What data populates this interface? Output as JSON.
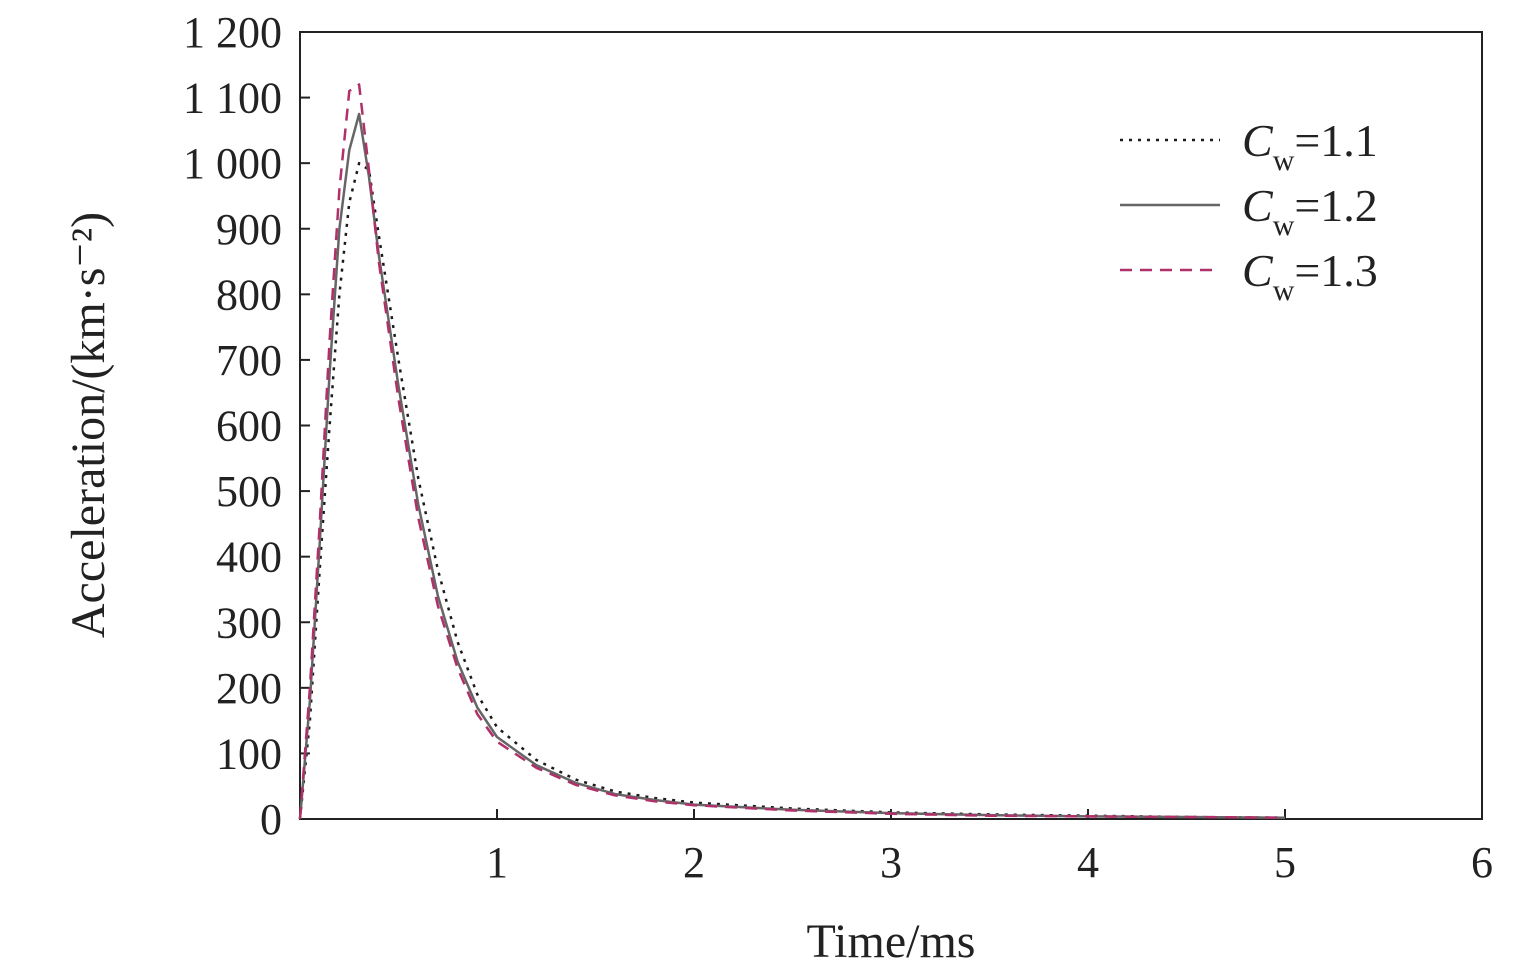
{
  "chart_data": {
    "type": "line",
    "title": "",
    "xlabel": "Time/ms",
    "ylabel": "Acceleration/(km·s⁻²)",
    "xlim": [
      0,
      6
    ],
    "ylim": [
      0,
      1200
    ],
    "x_ticks": [
      "1",
      "2",
      "3",
      "4",
      "5",
      "6"
    ],
    "y_ticks": [
      "0",
      "100",
      "200",
      "300",
      "400",
      "500",
      "600",
      "700",
      "800",
      "900",
      "1 000",
      "1 100",
      "1 200"
    ],
    "grid": false,
    "legend_position": "top-right",
    "series": [
      {
        "name": "Cw=1.1",
        "legend_main": "C",
        "legend_sub": "w",
        "legend_value": "=1.1",
        "style": "dotted",
        "color": "#1a1a1a",
        "x": [
          0,
          0.05,
          0.1,
          0.15,
          0.2,
          0.25,
          0.3,
          0.35,
          0.4,
          0.5,
          0.6,
          0.7,
          0.8,
          0.9,
          1.0,
          1.2,
          1.4,
          1.6,
          1.8,
          2.0,
          2.5,
          3.0,
          3.5,
          4.0,
          4.5,
          5.0
        ],
        "y": [
          0,
          150,
          380,
          600,
          800,
          940,
          1000,
          990,
          890,
          700,
          520,
          380,
          270,
          190,
          140,
          90,
          60,
          42,
          32,
          25,
          16,
          10,
          7,
          5,
          3,
          2
        ]
      },
      {
        "name": "Cw=1.2",
        "legend_main": "C",
        "legend_sub": "w",
        "legend_value": "=1.2",
        "style": "solid",
        "color": "#666666",
        "x": [
          0,
          0.05,
          0.1,
          0.15,
          0.2,
          0.25,
          0.3,
          0.35,
          0.4,
          0.5,
          0.6,
          0.7,
          0.8,
          0.9,
          1.0,
          1.2,
          1.4,
          1.6,
          1.8,
          2.0,
          2.5,
          3.0,
          3.5,
          4.0,
          4.5,
          5.0
        ],
        "y": [
          0,
          180,
          420,
          680,
          900,
          1020,
          1075,
          980,
          860,
          660,
          480,
          340,
          240,
          170,
          125,
          82,
          55,
          38,
          29,
          22,
          14,
          9,
          6,
          4,
          3,
          2
        ]
      },
      {
        "name": "Cw=1.3",
        "legend_main": "C",
        "legend_sub": "w",
        "legend_value": "=1.3",
        "style": "dashed",
        "color": "#b0306a",
        "x": [
          0,
          0.05,
          0.1,
          0.15,
          0.2,
          0.25,
          0.3,
          0.35,
          0.4,
          0.5,
          0.6,
          0.7,
          0.8,
          0.9,
          1.0,
          1.2,
          1.4,
          1.6,
          1.8,
          2.0,
          2.5,
          3.0,
          3.5,
          4.0,
          4.5,
          5.0
        ],
        "y": [
          0,
          200,
          450,
          730,
          960,
          1110,
          1120,
          990,
          850,
          640,
          460,
          325,
          230,
          160,
          118,
          78,
          52,
          36,
          27,
          21,
          13,
          8,
          5,
          4,
          3,
          2
        ]
      }
    ]
  }
}
